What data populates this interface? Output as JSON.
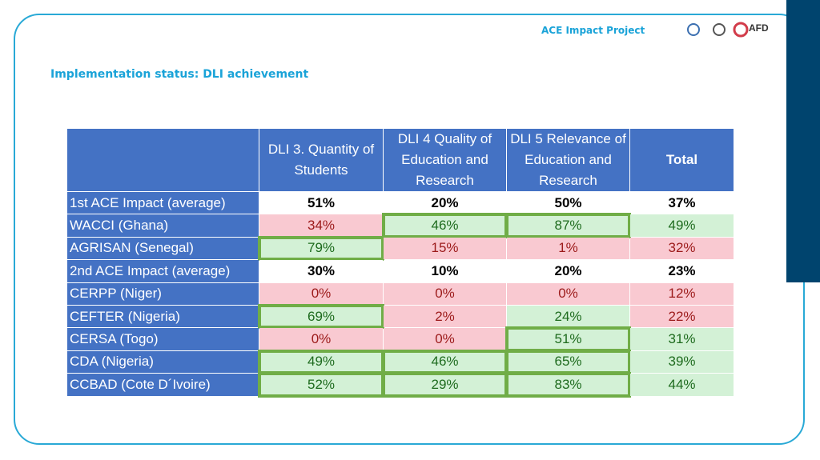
{
  "header": {
    "project": "ACE Impact Project",
    "logo_text": "AFD",
    "title": "Implementation status: DLI achievement"
  },
  "table": {
    "columns": [
      "DLI 3. Quantity of Students",
      "DLI 4 Quality of Education and Research",
      "DLI 5 Relevance of Education and Research",
      "Total"
    ],
    "header_color": "#4472c4",
    "rows": [
      {
        "label": "1st ACE Impact (average)",
        "cells": [
          "51%",
          "20%",
          "50%",
          "37%"
        ],
        "fills": [
          "#ffffff",
          "#ffffff",
          "#ffffff",
          "#ffffff"
        ],
        "highlight": [
          false,
          false,
          false,
          false
        ],
        "bold": true
      },
      {
        "label": "WACCI (Ghana)",
        "cells": [
          "34%",
          "46%",
          "87%",
          "49%"
        ],
        "fills": [
          "#f9c9d1",
          "#d3f1d6",
          "#d3f1d6",
          "#d3f1d6"
        ],
        "highlight": [
          false,
          true,
          true,
          false
        ],
        "bold": false
      },
      {
        "label": "AGRISAN (Senegal)",
        "cells": [
          "79%",
          "15%",
          "1%",
          "32%"
        ],
        "fills": [
          "#d3f1d6",
          "#f9c9d1",
          "#f9c9d1",
          "#f9c9d1"
        ],
        "highlight": [
          true,
          false,
          false,
          false
        ],
        "bold": false
      },
      {
        "label": "2nd ACE Impact (average)",
        "cells": [
          "30%",
          "10%",
          "20%",
          "23%"
        ],
        "fills": [
          "#ffffff",
          "#ffffff",
          "#ffffff",
          "#ffffff"
        ],
        "highlight": [
          false,
          false,
          false,
          false
        ],
        "bold": true
      },
      {
        "label": "CERPP (Niger)",
        "cells": [
          "0%",
          "0%",
          "0%",
          "12%"
        ],
        "fills": [
          "#f9c9d1",
          "#f9c9d1",
          "#f9c9d1",
          "#f9c9d1"
        ],
        "highlight": [
          false,
          false,
          false,
          false
        ],
        "bold": false
      },
      {
        "label": "CEFTER (Nigeria)",
        "cells": [
          "69%",
          "2%",
          "24%",
          "22%"
        ],
        "fills": [
          "#d3f1d6",
          "#f9c9d1",
          "#d3f1d6",
          "#f9c9d1"
        ],
        "highlight": [
          true,
          false,
          false,
          false
        ],
        "bold": false
      },
      {
        "label": "CERSA (Togo)",
        "cells": [
          "0%",
          "0%",
          "51%",
          "31%"
        ],
        "fills": [
          "#f9c9d1",
          "#f9c9d1",
          "#d3f1d6",
          "#d3f1d6"
        ],
        "highlight": [
          false,
          false,
          true,
          false
        ],
        "bold": false
      },
      {
        "label": "CDA (Nigeria)",
        "cells": [
          "49%",
          "46%",
          "65%",
          "39%"
        ],
        "fills": [
          "#d3f1d6",
          "#d3f1d6",
          "#d3f1d6",
          "#d3f1d6"
        ],
        "highlight": [
          true,
          true,
          true,
          false
        ],
        "bold": false
      },
      {
        "label": "CCBAD (Cote D´Ivoire)",
        "cells": [
          "52%",
          "29%",
          "83%",
          "44%"
        ],
        "fills": [
          "#d3f1d6",
          "#d3f1d6",
          "#d3f1d6",
          "#d3f1d6"
        ],
        "highlight": [
          true,
          true,
          true,
          false
        ],
        "bold": false
      }
    ]
  }
}
